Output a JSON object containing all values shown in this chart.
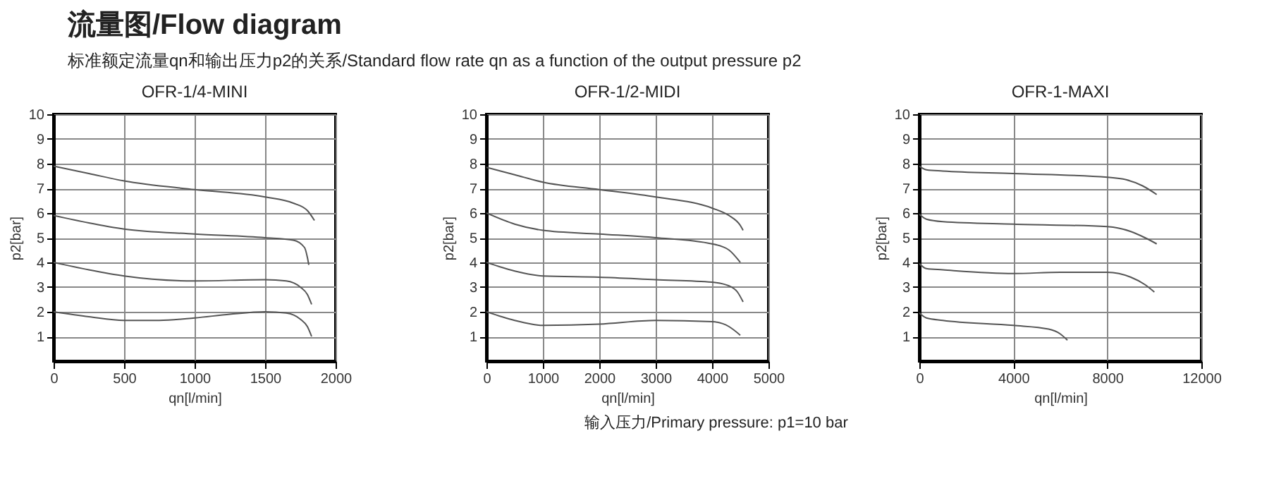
{
  "chart_data": [
    {
      "type": "line",
      "title": "OFR-1/4-MINI",
      "xlabel": "qn[l/min]",
      "ylabel": "p2[bar]",
      "annotations": [
        "流量图/Flow diagram",
        "标准额定流量qn和输出压力p2的关系/Standard flow rate qn as a function of the output pressure p2"
      ],
      "xlim": [
        0,
        2000
      ],
      "xticks": [
        0,
        500,
        1000,
        1500,
        2000
      ],
      "ylim": [
        0,
        10
      ],
      "yticks": [
        1,
        2,
        3,
        4,
        5,
        6,
        7,
        8,
        9,
        10
      ],
      "grid": true,
      "marker": "none",
      "line_style": "solid",
      "series": [
        {
          "color": "#555555",
          "x": [
            0,
            250,
            500,
            1000,
            1500,
            1700,
            1800,
            1850
          ],
          "values": [
            7.9,
            7.6,
            7.3,
            6.95,
            6.65,
            6.4,
            6.1,
            5.7
          ]
        },
        {
          "color": "#555555",
          "x": [
            0,
            250,
            500,
            1000,
            1500,
            1700,
            1780,
            1800,
            1810
          ],
          "values": [
            5.9,
            5.6,
            5.35,
            5.15,
            5.0,
            4.9,
            4.6,
            4.2,
            3.9
          ]
        },
        {
          "color": "#555555",
          "x": [
            0,
            250,
            500,
            1000,
            1500,
            1650,
            1750,
            1800,
            1830
          ],
          "values": [
            4.0,
            3.7,
            3.45,
            3.25,
            3.3,
            3.25,
            3.0,
            2.7,
            2.3
          ]
        },
        {
          "color": "#555555",
          "x": [
            0,
            250,
            500,
            750,
            1000,
            1250,
            1500,
            1650,
            1750,
            1800,
            1830
          ],
          "values": [
            2.0,
            1.8,
            1.65,
            1.65,
            1.75,
            1.9,
            2.0,
            1.95,
            1.7,
            1.4,
            1.0
          ]
        }
      ]
    },
    {
      "type": "line",
      "title": "OFR-1/2-MIDI",
      "xlabel": "qn[l/min]",
      "ylabel": "p2[bar]",
      "annotations": [
        "输入压力/Primary pressure: p1=10 bar"
      ],
      "xlim": [
        0,
        5000
      ],
      "xticks": [
        0,
        1000,
        2000,
        3000,
        4000,
        5000
      ],
      "ylim": [
        0,
        10
      ],
      "yticks": [
        1,
        2,
        3,
        4,
        5,
        6,
        7,
        8,
        9,
        10
      ],
      "grid": true,
      "marker": "none",
      "line_style": "solid",
      "series": [
        {
          "color": "#555555",
          "x": [
            0,
            500,
            1000,
            2000,
            3000,
            4000,
            4300,
            4500,
            4550
          ],
          "values": [
            7.85,
            7.55,
            7.25,
            6.95,
            6.65,
            6.2,
            5.9,
            5.5,
            5.3
          ]
        },
        {
          "color": "#555555",
          "x": [
            0,
            500,
            1000,
            2000,
            3000,
            4000,
            4300,
            4500
          ],
          "values": [
            6.0,
            5.55,
            5.3,
            5.15,
            5.0,
            4.75,
            4.5,
            4.0
          ]
        },
        {
          "color": "#555555",
          "x": [
            0,
            500,
            1000,
            2000,
            3000,
            4000,
            4300,
            4450,
            4550
          ],
          "values": [
            4.0,
            3.65,
            3.45,
            3.4,
            3.3,
            3.2,
            3.05,
            2.8,
            2.4
          ]
        },
        {
          "color": "#555555",
          "x": [
            0,
            500,
            1000,
            2000,
            3000,
            4000,
            4300,
            4500
          ],
          "values": [
            2.0,
            1.65,
            1.45,
            1.5,
            1.65,
            1.6,
            1.4,
            1.05
          ]
        }
      ]
    },
    {
      "type": "line",
      "title": "OFR-1-MAXI",
      "xlabel": "qn[l/min]",
      "ylabel": "p2[bar]",
      "xlim": [
        0,
        12000
      ],
      "xticks": [
        0,
        4000,
        8000,
        12000
      ],
      "ylim": [
        0,
        10
      ],
      "yticks": [
        1,
        2,
        3,
        4,
        5,
        6,
        7,
        8,
        9,
        10
      ],
      "grid": true,
      "marker": "none",
      "line_style": "solid",
      "series": [
        {
          "color": "#555555",
          "x": [
            0,
            300,
            1000,
            4000,
            8000,
            8800,
            9500,
            10100
          ],
          "values": [
            7.9,
            7.75,
            7.7,
            7.6,
            7.45,
            7.35,
            7.1,
            6.75
          ]
        },
        {
          "color": "#555555",
          "x": [
            0,
            300,
            1000,
            4000,
            8000,
            9000,
            9600,
            10100
          ],
          "values": [
            5.95,
            5.75,
            5.65,
            5.55,
            5.45,
            5.25,
            5.0,
            4.75
          ]
        },
        {
          "color": "#555555",
          "x": [
            0,
            300,
            1000,
            4000,
            6000,
            8000,
            9000,
            9600,
            10000
          ],
          "values": [
            3.95,
            3.75,
            3.7,
            3.55,
            3.6,
            3.6,
            3.4,
            3.1,
            2.8
          ]
        },
        {
          "color": "#555555",
          "x": [
            0,
            300,
            1000,
            4000,
            5500,
            6000,
            6300
          ],
          "values": [
            1.95,
            1.75,
            1.65,
            1.45,
            1.3,
            1.1,
            0.85
          ]
        }
      ]
    }
  ]
}
